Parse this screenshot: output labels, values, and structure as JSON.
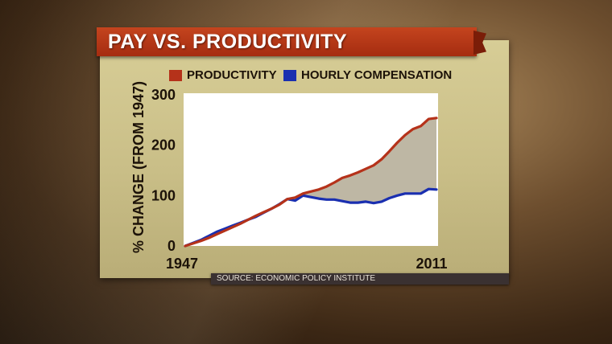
{
  "title": "PAY VS. PRODUCTIVITY",
  "source": "SOURCE: ECONOMIC POLICY INSTITUTE",
  "colors": {
    "productivity": "#b5321a",
    "compensation": "#1a2fb0",
    "gap_fill": "#a89f86",
    "banner": "#b83a18",
    "panel": "#d2c790",
    "plot_bg": "#ffffff"
  },
  "chart_data": {
    "type": "line",
    "title": "PAY VS. PRODUCTIVITY",
    "xlabel": "",
    "ylabel": "% CHANGE (FROM 1947)",
    "xlim": [
      1947,
      2011
    ],
    "ylim": [
      0,
      300
    ],
    "x_tick_labels": [
      "1947",
      "2011"
    ],
    "y_tick_values": [
      0,
      100,
      200,
      300
    ],
    "y_tick_labels": [
      "0",
      "100",
      "200",
      "300"
    ],
    "legend_position": "top",
    "grid": false,
    "shaded_gap_between_series": true,
    "x": [
      1947,
      1949,
      1951,
      1953,
      1955,
      1957,
      1959,
      1961,
      1963,
      1965,
      1967,
      1969,
      1971,
      1973,
      1975,
      1977,
      1979,
      1981,
      1983,
      1985,
      1987,
      1989,
      1991,
      1993,
      1995,
      1997,
      1999,
      2001,
      2003,
      2005,
      2007,
      2009,
      2011
    ],
    "series": [
      {
        "name": "PRODUCTIVITY",
        "color": "#b5321a",
        "values": [
          0,
          5,
          10,
          16,
          23,
          30,
          37,
          44,
          52,
          60,
          67,
          74,
          82,
          93,
          96,
          104,
          108,
          112,
          118,
          126,
          135,
          140,
          146,
          153,
          160,
          172,
          188,
          205,
          220,
          232,
          238,
          252,
          254
        ]
      },
      {
        "name": "HOURLY COMPENSATION",
        "color": "#1a2fb0",
        "values": [
          0,
          6,
          12,
          20,
          28,
          34,
          40,
          46,
          52,
          58,
          66,
          74,
          83,
          93,
          90,
          100,
          97,
          94,
          92,
          92,
          89,
          86,
          86,
          88,
          85,
          88,
          95,
          100,
          104,
          104,
          104,
          113,
          112
        ]
      }
    ]
  }
}
